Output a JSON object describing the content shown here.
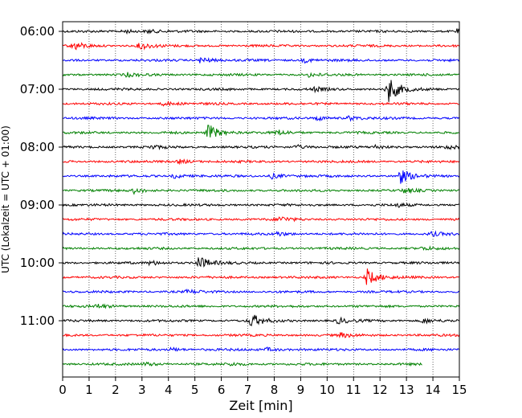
{
  "chart_data": {
    "type": "line",
    "title": "",
    "xlabel": "Zeit  [min]",
    "ylabel": "UTC (Lokalzeit = UTC + 01:00)",
    "xlim": [
      0,
      15
    ],
    "x_ticks": [
      0,
      1,
      2,
      3,
      4,
      5,
      6,
      7,
      8,
      9,
      10,
      11,
      12,
      13,
      14,
      15
    ],
    "x_tick_labels": [
      "0",
      "1",
      "2",
      "3",
      "4",
      "5",
      "6",
      "7",
      "8",
      "9",
      "10",
      "11",
      "12",
      "13",
      "14",
      "15"
    ],
    "y_tick_labels": [
      "06:00",
      "07:00",
      "08:00",
      "09:00",
      "10:00",
      "11:00"
    ],
    "trace_interval_min": 15,
    "first_trace_start": "06:00",
    "trace_count": 24,
    "last_trace_end_min": 13.6,
    "color_cycle": [
      "#000000",
      "#ff0000",
      "#0000ff",
      "#008000"
    ],
    "grid": "vertical dotted",
    "events": [
      {
        "trace": 0,
        "t": 2.3,
        "amp": 0.55
      },
      {
        "trace": 0,
        "t": 3.2,
        "amp": 0.45
      },
      {
        "trace": 0,
        "t": 14.9,
        "amp": 0.5
      },
      {
        "trace": 1,
        "t": 0.4,
        "amp": 1.2
      },
      {
        "trace": 1,
        "t": 2.9,
        "amp": 1.1
      },
      {
        "trace": 2,
        "t": 5.2,
        "amp": 0.9
      },
      {
        "trace": 2,
        "t": 9.1,
        "amp": 0.6
      },
      {
        "trace": 3,
        "t": 2.4,
        "amp": 0.5
      },
      {
        "trace": 3,
        "t": 9.3,
        "amp": 0.5
      },
      {
        "trace": 4,
        "t": 12.3,
        "amp": 3.8
      },
      {
        "trace": 4,
        "t": 9.5,
        "amp": 0.5
      },
      {
        "trace": 5,
        "t": 3.8,
        "amp": 0.6
      },
      {
        "trace": 6,
        "t": 9.6,
        "amp": 0.6
      },
      {
        "trace": 6,
        "t": 10.8,
        "amp": 0.6
      },
      {
        "trace": 7,
        "t": 5.5,
        "amp": 2.4
      },
      {
        "trace": 7,
        "t": 8.1,
        "amp": 0.7
      },
      {
        "trace": 8,
        "t": 3.3,
        "amp": 0.5
      },
      {
        "trace": 8,
        "t": 8.8,
        "amp": 0.6
      },
      {
        "trace": 8,
        "t": 11.8,
        "amp": 0.5
      },
      {
        "trace": 8,
        "t": 14.5,
        "amp": 0.5
      },
      {
        "trace": 9,
        "t": 4.4,
        "amp": 0.6
      },
      {
        "trace": 10,
        "t": 12.7,
        "amp": 2.4
      },
      {
        "trace": 10,
        "t": 7.9,
        "amp": 0.7
      },
      {
        "trace": 10,
        "t": 4.2,
        "amp": 0.6
      },
      {
        "trace": 11,
        "t": 2.7,
        "amp": 0.7
      },
      {
        "trace": 11,
        "t": 12.9,
        "amp": 0.6
      },
      {
        "trace": 12,
        "t": 12.6,
        "amp": 0.5
      },
      {
        "trace": 13,
        "t": 8.2,
        "amp": 0.8
      },
      {
        "trace": 14,
        "t": 13.9,
        "amp": 0.6
      },
      {
        "trace": 14,
        "t": 8.1,
        "amp": 0.5
      },
      {
        "trace": 15,
        "t": 13.6,
        "amp": 0.4
      },
      {
        "trace": 16,
        "t": 5.1,
        "amp": 2.0
      },
      {
        "trace": 16,
        "t": 3.3,
        "amp": 0.6
      },
      {
        "trace": 17,
        "t": 11.5,
        "amp": 2.4
      },
      {
        "trace": 18,
        "t": 4.7,
        "amp": 0.5
      },
      {
        "trace": 19,
        "t": 1.3,
        "amp": 0.6
      },
      {
        "trace": 20,
        "t": 7.1,
        "amp": 2.0
      },
      {
        "trace": 20,
        "t": 10.4,
        "amp": 0.8
      },
      {
        "trace": 20,
        "t": 13.6,
        "amp": 0.7
      },
      {
        "trace": 21,
        "t": 10.5,
        "amp": 0.6
      },
      {
        "trace": 22,
        "t": 4.1,
        "amp": 0.5
      },
      {
        "trace": 22,
        "t": 7.7,
        "amp": 0.5
      },
      {
        "trace": 23,
        "t": 3.1,
        "amp": 0.5
      },
      {
        "trace": 23,
        "t": 6.3,
        "amp": 0.4
      }
    ]
  }
}
